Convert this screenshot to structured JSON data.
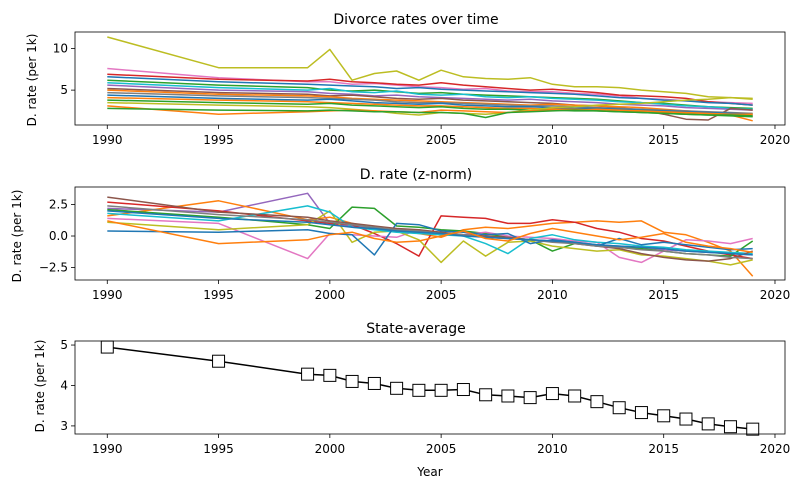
{
  "chart_data": [
    {
      "type": "line",
      "title": "Divorce rates over time",
      "xlabel": "",
      "ylabel": "D. rate (per 1k)",
      "xlim": [
        1988.55,
        2020.45
      ],
      "ylim": [
        0.8,
        12.0
      ],
      "xticks": [
        "1990",
        "1995",
        "2000",
        "2005",
        "2010",
        "2015",
        "2020"
      ],
      "yticks": [
        "5",
        "10"
      ],
      "x": [
        1990,
        1995,
        1999,
        2000,
        2001,
        2002,
        2003,
        2004,
        2005,
        2006,
        2007,
        2008,
        2009,
        2010,
        2011,
        2012,
        2013,
        2014,
        2015,
        2016,
        2017,
        2018,
        2019
      ],
      "series": [
        {
          "color": "#bcbd22",
          "values": [
            11.4,
            7.7,
            7.7,
            9.9,
            6.2,
            7.0,
            7.3,
            6.2,
            7.4,
            6.6,
            6.4,
            6.3,
            6.5,
            5.7,
            5.4,
            5.4,
            5.3,
            5.0,
            4.8,
            4.6,
            4.2,
            4.1,
            3.9
          ]
        },
        {
          "color": "#e377c2",
          "values": [
            7.6,
            6.5,
            6.0,
            6.0,
            5.7,
            5.8,
            5.6,
            5.4,
            5.3,
            5.1,
            5.2,
            4.9,
            4.8,
            4.8,
            4.6,
            4.5,
            4.3,
            4.0,
            3.9,
            3.7,
            3.6,
            3.5,
            3.4
          ]
        },
        {
          "color": "#d62728",
          "values": [
            6.9,
            6.3,
            6.1,
            6.3,
            6.0,
            5.9,
            5.7,
            5.6,
            5.9,
            5.6,
            5.4,
            5.2,
            5.0,
            5.1,
            4.9,
            4.7,
            4.4,
            4.3,
            4.2,
            4.0,
            3.6,
            3.4,
            3.2
          ]
        },
        {
          "color": "#1f77b4",
          "values": [
            6.6,
            6.0,
            5.7,
            5.6,
            5.5,
            5.4,
            5.2,
            5.3,
            5.1,
            5.0,
            4.9,
            4.8,
            4.7,
            4.6,
            4.5,
            4.3,
            4.1,
            4.0,
            3.8,
            3.7,
            3.5,
            3.4,
            3.2
          ]
        },
        {
          "color": "#2ca02c",
          "values": [
            6.2,
            5.6,
            5.3,
            5.0,
            4.9,
            5.0,
            4.8,
            4.6,
            4.7,
            4.5,
            4.4,
            4.3,
            4.2,
            4.1,
            4.0,
            3.9,
            3.7,
            3.5,
            3.4,
            3.2,
            3.0,
            2.9,
            2.8
          ]
        },
        {
          "color": "#17becf",
          "values": [
            5.9,
            5.3,
            5.0,
            5.2,
            4.8,
            4.7,
            4.9,
            4.5,
            4.4,
            4.5,
            4.2,
            4.1,
            4.2,
            4.0,
            3.9,
            3.8,
            3.6,
            3.5,
            3.3,
            3.1,
            3.0,
            2.8,
            2.7
          ]
        },
        {
          "color": "#9467bd",
          "values": [
            5.6,
            5.0,
            4.8,
            4.6,
            4.5,
            4.3,
            4.4,
            4.2,
            4.1,
            4.0,
            3.9,
            3.8,
            3.9,
            3.7,
            3.6,
            3.5,
            3.3,
            3.2,
            3.1,
            2.9,
            2.8,
            2.7,
            2.6
          ]
        },
        {
          "color": "#8c564b",
          "values": [
            5.2,
            4.7,
            4.5,
            4.3,
            4.4,
            4.2,
            4.0,
            3.9,
            4.0,
            3.8,
            3.7,
            3.6,
            3.5,
            3.4,
            3.2,
            3.1,
            2.9,
            2.6,
            2.1,
            1.5,
            1.4,
            2.8,
            2.6
          ]
        },
        {
          "color": "#ff7f0e",
          "values": [
            5.0,
            4.5,
            4.3,
            4.2,
            4.0,
            3.9,
            3.8,
            3.7,
            3.6,
            3.5,
            3.4,
            3.3,
            3.2,
            3.3,
            3.2,
            3.1,
            3.0,
            2.9,
            2.7,
            2.5,
            2.3,
            2.0,
            1.3
          ]
        },
        {
          "color": "#7f7f7f",
          "values": [
            4.7,
            4.3,
            4.1,
            4.0,
            3.9,
            3.8,
            3.6,
            3.5,
            3.5,
            3.4,
            3.3,
            3.2,
            3.1,
            3.1,
            3.0,
            2.9,
            2.8,
            2.7,
            2.6,
            2.5,
            2.4,
            2.3,
            2.2
          ]
        },
        {
          "color": "#1f77b4",
          "values": [
            4.4,
            4.0,
            3.8,
            3.9,
            3.7,
            3.5,
            3.4,
            3.3,
            3.4,
            3.2,
            3.1,
            3.0,
            3.0,
            2.9,
            2.8,
            2.8,
            2.7,
            2.6,
            2.5,
            2.4,
            2.3,
            2.2,
            2.1
          ]
        },
        {
          "color": "#ff7f0e",
          "values": [
            4.1,
            3.8,
            3.6,
            3.5,
            3.4,
            3.3,
            3.2,
            3.1,
            3.1,
            3.0,
            2.9,
            2.8,
            2.8,
            2.7,
            2.7,
            2.6,
            2.5,
            2.4,
            2.3,
            2.2,
            2.1,
            2.0,
            1.9
          ]
        },
        {
          "color": "#2ca02c",
          "values": [
            3.8,
            3.5,
            3.3,
            3.4,
            3.2,
            3.1,
            3.0,
            2.9,
            3.0,
            2.8,
            2.7,
            2.7,
            2.6,
            2.6,
            2.5,
            2.5,
            2.4,
            2.3,
            2.2,
            2.1,
            2.0,
            1.9,
            1.8
          ]
        },
        {
          "color": "#bcbd22",
          "values": [
            3.5,
            3.2,
            3.0,
            2.9,
            2.7,
            2.5,
            2.2,
            2.0,
            2.3,
            2.2,
            2.1,
            2.3,
            2.6,
            2.9,
            3.0,
            3.2,
            3.3,
            3.4,
            3.6,
            3.8,
            3.9,
            4.1,
            4.0
          ]
        },
        {
          "color": "#ff7f0e",
          "values": [
            3.1,
            2.1,
            2.4,
            2.5,
            2.6,
            2.5,
            2.4,
            2.3,
            2.6,
            2.5,
            2.4,
            2.3,
            2.5,
            2.6,
            2.6,
            2.7,
            2.6,
            2.5,
            2.4,
            2.3,
            2.2,
            2.1,
            2.1
          ]
        },
        {
          "color": "#2ca02c",
          "values": [
            2.8,
            2.6,
            2.5,
            2.6,
            2.5,
            2.4,
            2.4,
            2.3,
            2.3,
            2.2,
            1.7,
            2.3,
            2.4,
            2.5,
            2.6,
            2.5,
            2.4,
            2.3,
            2.2,
            2.1,
            2.0,
            2.0,
            1.9
          ]
        }
      ]
    },
    {
      "type": "line",
      "title": "D. rate (z-norm)",
      "xlabel": "",
      "ylabel": "D. rate (per 1k)",
      "xlim": [
        1988.55,
        2020.45
      ],
      "ylim": [
        -3.5,
        3.9
      ],
      "xticks": [
        "1990",
        "1995",
        "2000",
        "2005",
        "2010",
        "2015",
        "2020"
      ],
      "yticks": [
        "−2.5",
        "0.0",
        "2.5"
      ],
      "x": [
        1990,
        1995,
        1999,
        2000,
        2001,
        2002,
        2003,
        2004,
        2005,
        2006,
        2007,
        2008,
        2009,
        2010,
        2011,
        2012,
        2013,
        2014,
        2015,
        2016,
        2017,
        2018,
        2019
      ],
      "series": [
        {
          "color": "#9467bd",
          "values": [
            2.2,
            1.9,
            3.4,
            1.0,
            0.8,
            0.6,
            0.5,
            0.3,
            0.2,
            0.1,
            -0.1,
            -0.2,
            -0.3,
            -0.4,
            -0.5,
            -0.7,
            -0.8,
            -0.9,
            -1.1,
            -1.2,
            -1.3,
            -1.4,
            -1.5
          ]
        },
        {
          "color": "#ff7f0e",
          "values": [
            1.6,
            2.8,
            1.3,
            1.5,
            1.0,
            0.6,
            0.4,
            0.2,
            -0.1,
            0.5,
            0.7,
            0.6,
            0.8,
            1.0,
            1.1,
            1.2,
            1.1,
            1.2,
            0.3,
            0.1,
            -0.5,
            -1.2,
            -3.2
          ]
        },
        {
          "color": "#d62728",
          "values": [
            2.7,
            2.0,
            1.2,
            1.0,
            0.9,
            0.2,
            -0.6,
            -1.6,
            1.6,
            1.5,
            1.4,
            1.0,
            1.0,
            1.3,
            1.1,
            0.6,
            0.3,
            -0.2,
            -0.4,
            -0.8,
            -1.2,
            -1.5,
            -1.8
          ]
        },
        {
          "color": "#2ca02c",
          "values": [
            2.1,
            1.5,
            0.9,
            0.6,
            2.3,
            2.2,
            0.8,
            0.7,
            0.5,
            0.4,
            0.2,
            -0.1,
            -0.3,
            -1.2,
            -0.6,
            -0.7,
            -0.9,
            -1.0,
            -1.2,
            -1.4,
            -1.5,
            -1.6,
            -0.4
          ]
        },
        {
          "color": "#e377c2",
          "values": [
            1.4,
            1.0,
            -1.8,
            0.2,
            0.1,
            0.0,
            -0.1,
            0.5,
            0.2,
            0.1,
            0.3,
            0.0,
            -0.1,
            -0.2,
            -0.4,
            -0.5,
            -1.7,
            -2.1,
            -1.2,
            -0.3,
            -0.4,
            -0.6,
            -0.2
          ]
        },
        {
          "color": "#bcbd22",
          "values": [
            1.1,
            0.5,
            0.9,
            2.0,
            -0.5,
            0.3,
            0.4,
            -0.3,
            -2.1,
            -0.4,
            -1.6,
            -0.5,
            -0.4,
            -0.8,
            -1.0,
            -1.2,
            -1.1,
            -1.5,
            -1.6,
            -1.8,
            -2.0,
            -2.3,
            -1.9
          ]
        },
        {
          "color": "#17becf",
          "values": [
            1.8,
            1.2,
            2.4,
            1.9,
            0.7,
            0.5,
            0.3,
            0.2,
            0.1,
            0.0,
            -0.6,
            -1.4,
            -0.2,
            0.1,
            -0.3,
            -0.5,
            -0.6,
            -0.8,
            -0.9,
            -1.1,
            -1.2,
            -1.3,
            -1.4
          ]
        },
        {
          "color": "#1f77b4",
          "values": [
            0.4,
            0.3,
            0.5,
            0.2,
            0.1,
            -1.5,
            1.0,
            0.9,
            0.4,
            0.3,
            0.1,
            0.2,
            -0.6,
            -0.3,
            -0.5,
            -0.8,
            -0.2,
            -0.7,
            -0.5,
            -0.7,
            -0.9,
            -1.1,
            -1.0
          ]
        },
        {
          "color": "#8c564b",
          "values": [
            3.1,
            1.9,
            1.5,
            1.2,
            1.0,
            0.8,
            0.6,
            0.5,
            0.3,
            0.1,
            0.0,
            -0.1,
            -0.3,
            -0.4,
            -0.6,
            -0.8,
            -1.0,
            -1.4,
            -1.7,
            -1.9,
            -2.0,
            -1.8,
            -1.2
          ]
        },
        {
          "color": "#7f7f7f",
          "values": [
            2.4,
            1.7,
            1.3,
            1.1,
            0.9,
            0.7,
            0.5,
            0.4,
            0.2,
            0.1,
            -0.1,
            -0.2,
            -0.3,
            -0.5,
            -0.6,
            -0.8,
            -0.9,
            -1.1,
            -1.2,
            -1.4,
            -1.5,
            -1.7,
            -1.8
          ]
        },
        {
          "color": "#1f77b4",
          "values": [
            2.0,
            1.4,
            1.1,
            0.9,
            0.7,
            0.6,
            0.4,
            0.3,
            0.2,
            0.0,
            -0.1,
            -0.2,
            -0.3,
            -0.4,
            -0.5,
            -0.7,
            -0.8,
            -0.9,
            -1.0,
            -1.2,
            -1.3,
            -1.4,
            -1.5
          ]
        },
        {
          "color": "#ff7f0e",
          "values": [
            1.2,
            -0.6,
            -0.3,
            0.1,
            0.3,
            -0.2,
            -0.5,
            -0.4,
            0.0,
            0.4,
            -0.2,
            -0.4,
            0.2,
            0.6,
            0.3,
            0.0,
            -0.3,
            -0.1,
            0.2,
            -0.5,
            -0.8,
            -1.0,
            -1.3
          ]
        }
      ]
    },
    {
      "type": "line",
      "title": "State-average",
      "xlabel": "Year",
      "ylabel": "D. rate (per 1k)",
      "xlim": [
        1988.55,
        2020.45
      ],
      "ylim": [
        2.8,
        5.1
      ],
      "xticks": [
        "1990",
        "1995",
        "2000",
        "2005",
        "2010",
        "2015",
        "2020"
      ],
      "yticks": [
        "3",
        "4",
        "5"
      ],
      "marker": "square-open",
      "x": [
        1990,
        1995,
        1999,
        2000,
        2001,
        2002,
        2003,
        2004,
        2005,
        2006,
        2007,
        2008,
        2009,
        2010,
        2011,
        2012,
        2013,
        2014,
        2015,
        2016,
        2017,
        2018,
        2019
      ],
      "series": [
        {
          "color": "#000000",
          "values": [
            4.95,
            4.6,
            4.28,
            4.25,
            4.1,
            4.05,
            3.93,
            3.88,
            3.88,
            3.9,
            3.77,
            3.74,
            3.7,
            3.8,
            3.74,
            3.6,
            3.45,
            3.33,
            3.25,
            3.17,
            3.05,
            2.98,
            2.92
          ]
        }
      ]
    }
  ]
}
